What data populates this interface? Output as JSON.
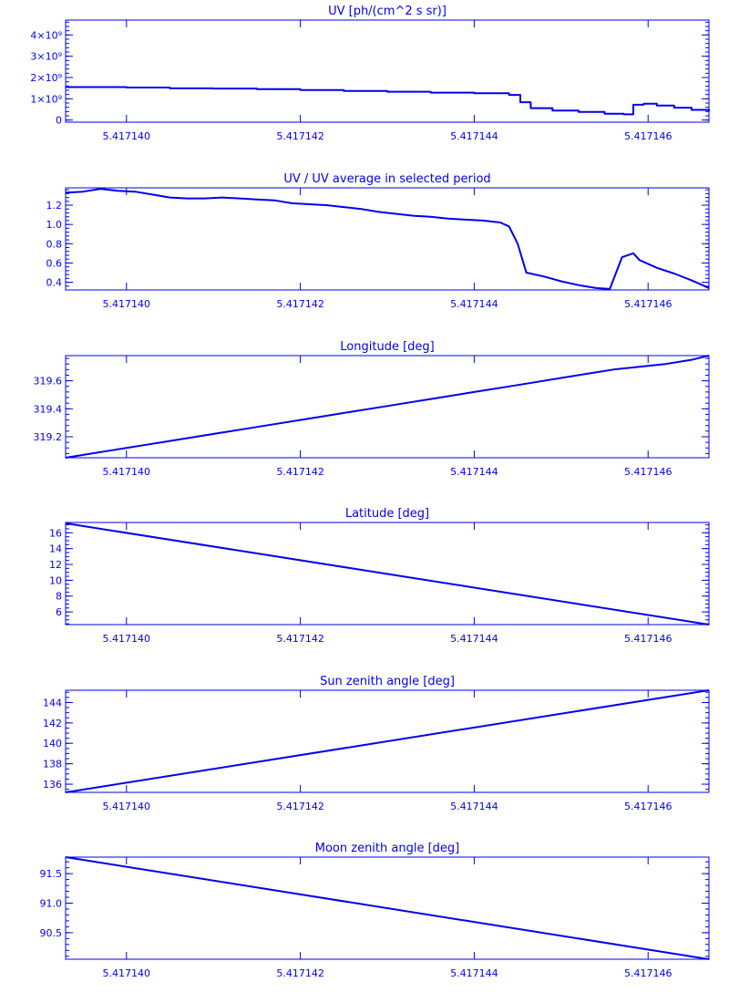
{
  "style": {
    "color": "#0000ee",
    "background": "#ffffff"
  },
  "chart_data": [
    {
      "type": "line",
      "title": "UV [ph/(cm^2 s sr)]",
      "xlim": [
        5.4171393,
        5.4171467
      ],
      "ylim": [
        -100000000,
        4700000000
      ],
      "xticks": [
        5.41714,
        5.417142,
        5.417144,
        5.417146
      ],
      "xtick_labels": [
        "5.417140",
        "5.417142",
        "5.417144",
        "5.417146"
      ],
      "yticks": [
        0,
        1000000000,
        2000000000,
        3000000000,
        4000000000
      ],
      "ytick_labels": [
        "0",
        "1×10⁹",
        "2×10⁹",
        "3×10⁹",
        "4×10⁹"
      ],
      "minor_ticks": 5,
      "grid": false,
      "series": [
        {
          "step": true,
          "x": [
            5.4171393,
            5.41714,
            5.4171405,
            5.417141,
            5.4171415,
            5.417142,
            5.4171425,
            5.417143,
            5.4171435,
            5.417144,
            5.4171444,
            5.41714453,
            5.41714465,
            5.4171449,
            5.4171452,
            5.4171455,
            5.41714572,
            5.41714583,
            5.41714595,
            5.4171461,
            5.4171463,
            5.4171465,
            5.4171467
          ],
          "y": [
            1550000000,
            1530000000,
            1490000000,
            1480000000,
            1450000000,
            1410000000,
            1370000000,
            1330000000,
            1290000000,
            1260000000,
            1180000000,
            840000000,
            560000000,
            450000000,
            380000000,
            300000000,
            270000000,
            720000000,
            770000000,
            680000000,
            580000000,
            480000000,
            400000000
          ]
        }
      ]
    },
    {
      "type": "line",
      "title": "UV / UV average in selected period",
      "xlim": [
        5.4171393,
        5.4171467
      ],
      "ylim": [
        0.32,
        1.38
      ],
      "xticks": [
        5.41714,
        5.417142,
        5.417144,
        5.417146
      ],
      "xtick_labels": [
        "5.417140",
        "5.417142",
        "5.417144",
        "5.417146"
      ],
      "yticks": [
        0.4,
        0.6,
        0.8,
        1.0,
        1.2
      ],
      "ytick_labels": [
        "0.4",
        "0.6",
        "0.8",
        "1.0",
        "1.2"
      ],
      "minor_ticks": 5,
      "grid": false,
      "series": [
        {
          "x": [
            5.4171393,
            5.4171395,
            5.4171397,
            5.4171399,
            5.4171401,
            5.4171403,
            5.4171405,
            5.4171407,
            5.4171409,
            5.4171411,
            5.4171413,
            5.4171415,
            5.4171417,
            5.4171419,
            5.4171421,
            5.4171423,
            5.4171425,
            5.4171427,
            5.4171429,
            5.4171431,
            5.4171433,
            5.4171435,
            5.4171437,
            5.4171439,
            5.4171441,
            5.4171443,
            5.4171444,
            5.4171445,
            5.4171446,
            5.4171448,
            5.417145,
            5.4171452,
            5.4171454,
            5.41714556,
            5.4171457,
            5.41714583,
            5.4171459,
            5.4171461,
            5.4171463,
            5.4171465,
            5.4171467
          ],
          "y": [
            1.33,
            1.34,
            1.37,
            1.35,
            1.34,
            1.31,
            1.28,
            1.27,
            1.27,
            1.28,
            1.27,
            1.26,
            1.25,
            1.22,
            1.21,
            1.2,
            1.18,
            1.16,
            1.13,
            1.11,
            1.09,
            1.08,
            1.06,
            1.05,
            1.04,
            1.02,
            0.98,
            0.8,
            0.5,
            0.46,
            0.41,
            0.37,
            0.34,
            0.33,
            0.66,
            0.7,
            0.63,
            0.55,
            0.49,
            0.42,
            0.34
          ]
        }
      ]
    },
    {
      "type": "line",
      "title": "Longitude [deg]",
      "xlim": [
        5.4171393,
        5.4171467
      ],
      "ylim": [
        319.05,
        319.78
      ],
      "xticks": [
        5.41714,
        5.417142,
        5.417144,
        5.417146
      ],
      "xtick_labels": [
        "5.417140",
        "5.417142",
        "5.417144",
        "5.417146"
      ],
      "yticks": [
        319.2,
        319.4,
        319.6
      ],
      "ytick_labels": [
        "319.2",
        "319.4",
        "319.6"
      ],
      "minor_ticks": 5,
      "grid": false,
      "series": [
        {
          "x": [
            5.4171393,
            5.4171396,
            5.4171398,
            5.41714,
            5.4171402,
            5.4171405,
            5.4171408,
            5.4171411,
            5.4171414,
            5.4171417,
            5.417142,
            5.4171423,
            5.4171426,
            5.4171429,
            5.4171432,
            5.4171435,
            5.4171438,
            5.4171441,
            5.4171444,
            5.4171447,
            5.417145,
            5.4171453,
            5.4171456,
            5.4171459,
            5.4171462,
            5.4171465,
            5.4171467
          ],
          "y": [
            319.05,
            319.08,
            319.1,
            319.12,
            319.14,
            319.17,
            319.2,
            319.23,
            319.26,
            319.29,
            319.32,
            319.35,
            319.38,
            319.41,
            319.44,
            319.47,
            319.5,
            319.53,
            319.56,
            319.59,
            319.62,
            319.65,
            319.68,
            319.7,
            319.72,
            319.75,
            319.78
          ]
        }
      ]
    },
    {
      "type": "line",
      "title": "Latitude [deg]",
      "xlim": [
        5.4171393,
        5.4171467
      ],
      "ylim": [
        4.4,
        17.3
      ],
      "xticks": [
        5.41714,
        5.417142,
        5.417144,
        5.417146
      ],
      "xtick_labels": [
        "5.417140",
        "5.417142",
        "5.417144",
        "5.417146"
      ],
      "yticks": [
        6,
        8,
        10,
        12,
        14,
        16
      ],
      "ytick_labels": [
        "6",
        "8",
        "10",
        "12",
        "14",
        "16"
      ],
      "minor_ticks": 4,
      "grid": false,
      "series": [
        {
          "x": [
            5.4171393,
            5.4171467
          ],
          "y": [
            17.2,
            4.4
          ]
        }
      ]
    },
    {
      "type": "line",
      "title": "Sun zenith angle [deg]",
      "xlim": [
        5.4171393,
        5.4171467
      ],
      "ylim": [
        135.2,
        145.2
      ],
      "xticks": [
        5.41714,
        5.417142,
        5.417144,
        5.417146
      ],
      "xtick_labels": [
        "5.417140",
        "5.417142",
        "5.417144",
        "5.417146"
      ],
      "yticks": [
        136,
        138,
        140,
        142,
        144
      ],
      "ytick_labels": [
        "136",
        "138",
        "140",
        "142",
        "144"
      ],
      "minor_ticks": 4,
      "grid": false,
      "series": [
        {
          "x": [
            5.4171393,
            5.4171467
          ],
          "y": [
            135.2,
            145.2
          ]
        }
      ]
    },
    {
      "type": "line",
      "title": "Moon zenith angle [deg]",
      "xlim": [
        5.4171393,
        5.4171467
      ],
      "ylim": [
        90.05,
        91.78
      ],
      "xticks": [
        5.41714,
        5.417142,
        5.417144,
        5.417146
      ],
      "xtick_labels": [
        "5.417140",
        "5.417142",
        "5.417144",
        "5.417146"
      ],
      "yticks": [
        90.5,
        91.0,
        91.5
      ],
      "ytick_labels": [
        "90.5",
        "91.0",
        "91.5"
      ],
      "minor_ticks": 5,
      "grid": false,
      "series": [
        {
          "x": [
            5.4171393,
            5.4171467
          ],
          "y": [
            91.78,
            90.05
          ]
        }
      ]
    }
  ]
}
